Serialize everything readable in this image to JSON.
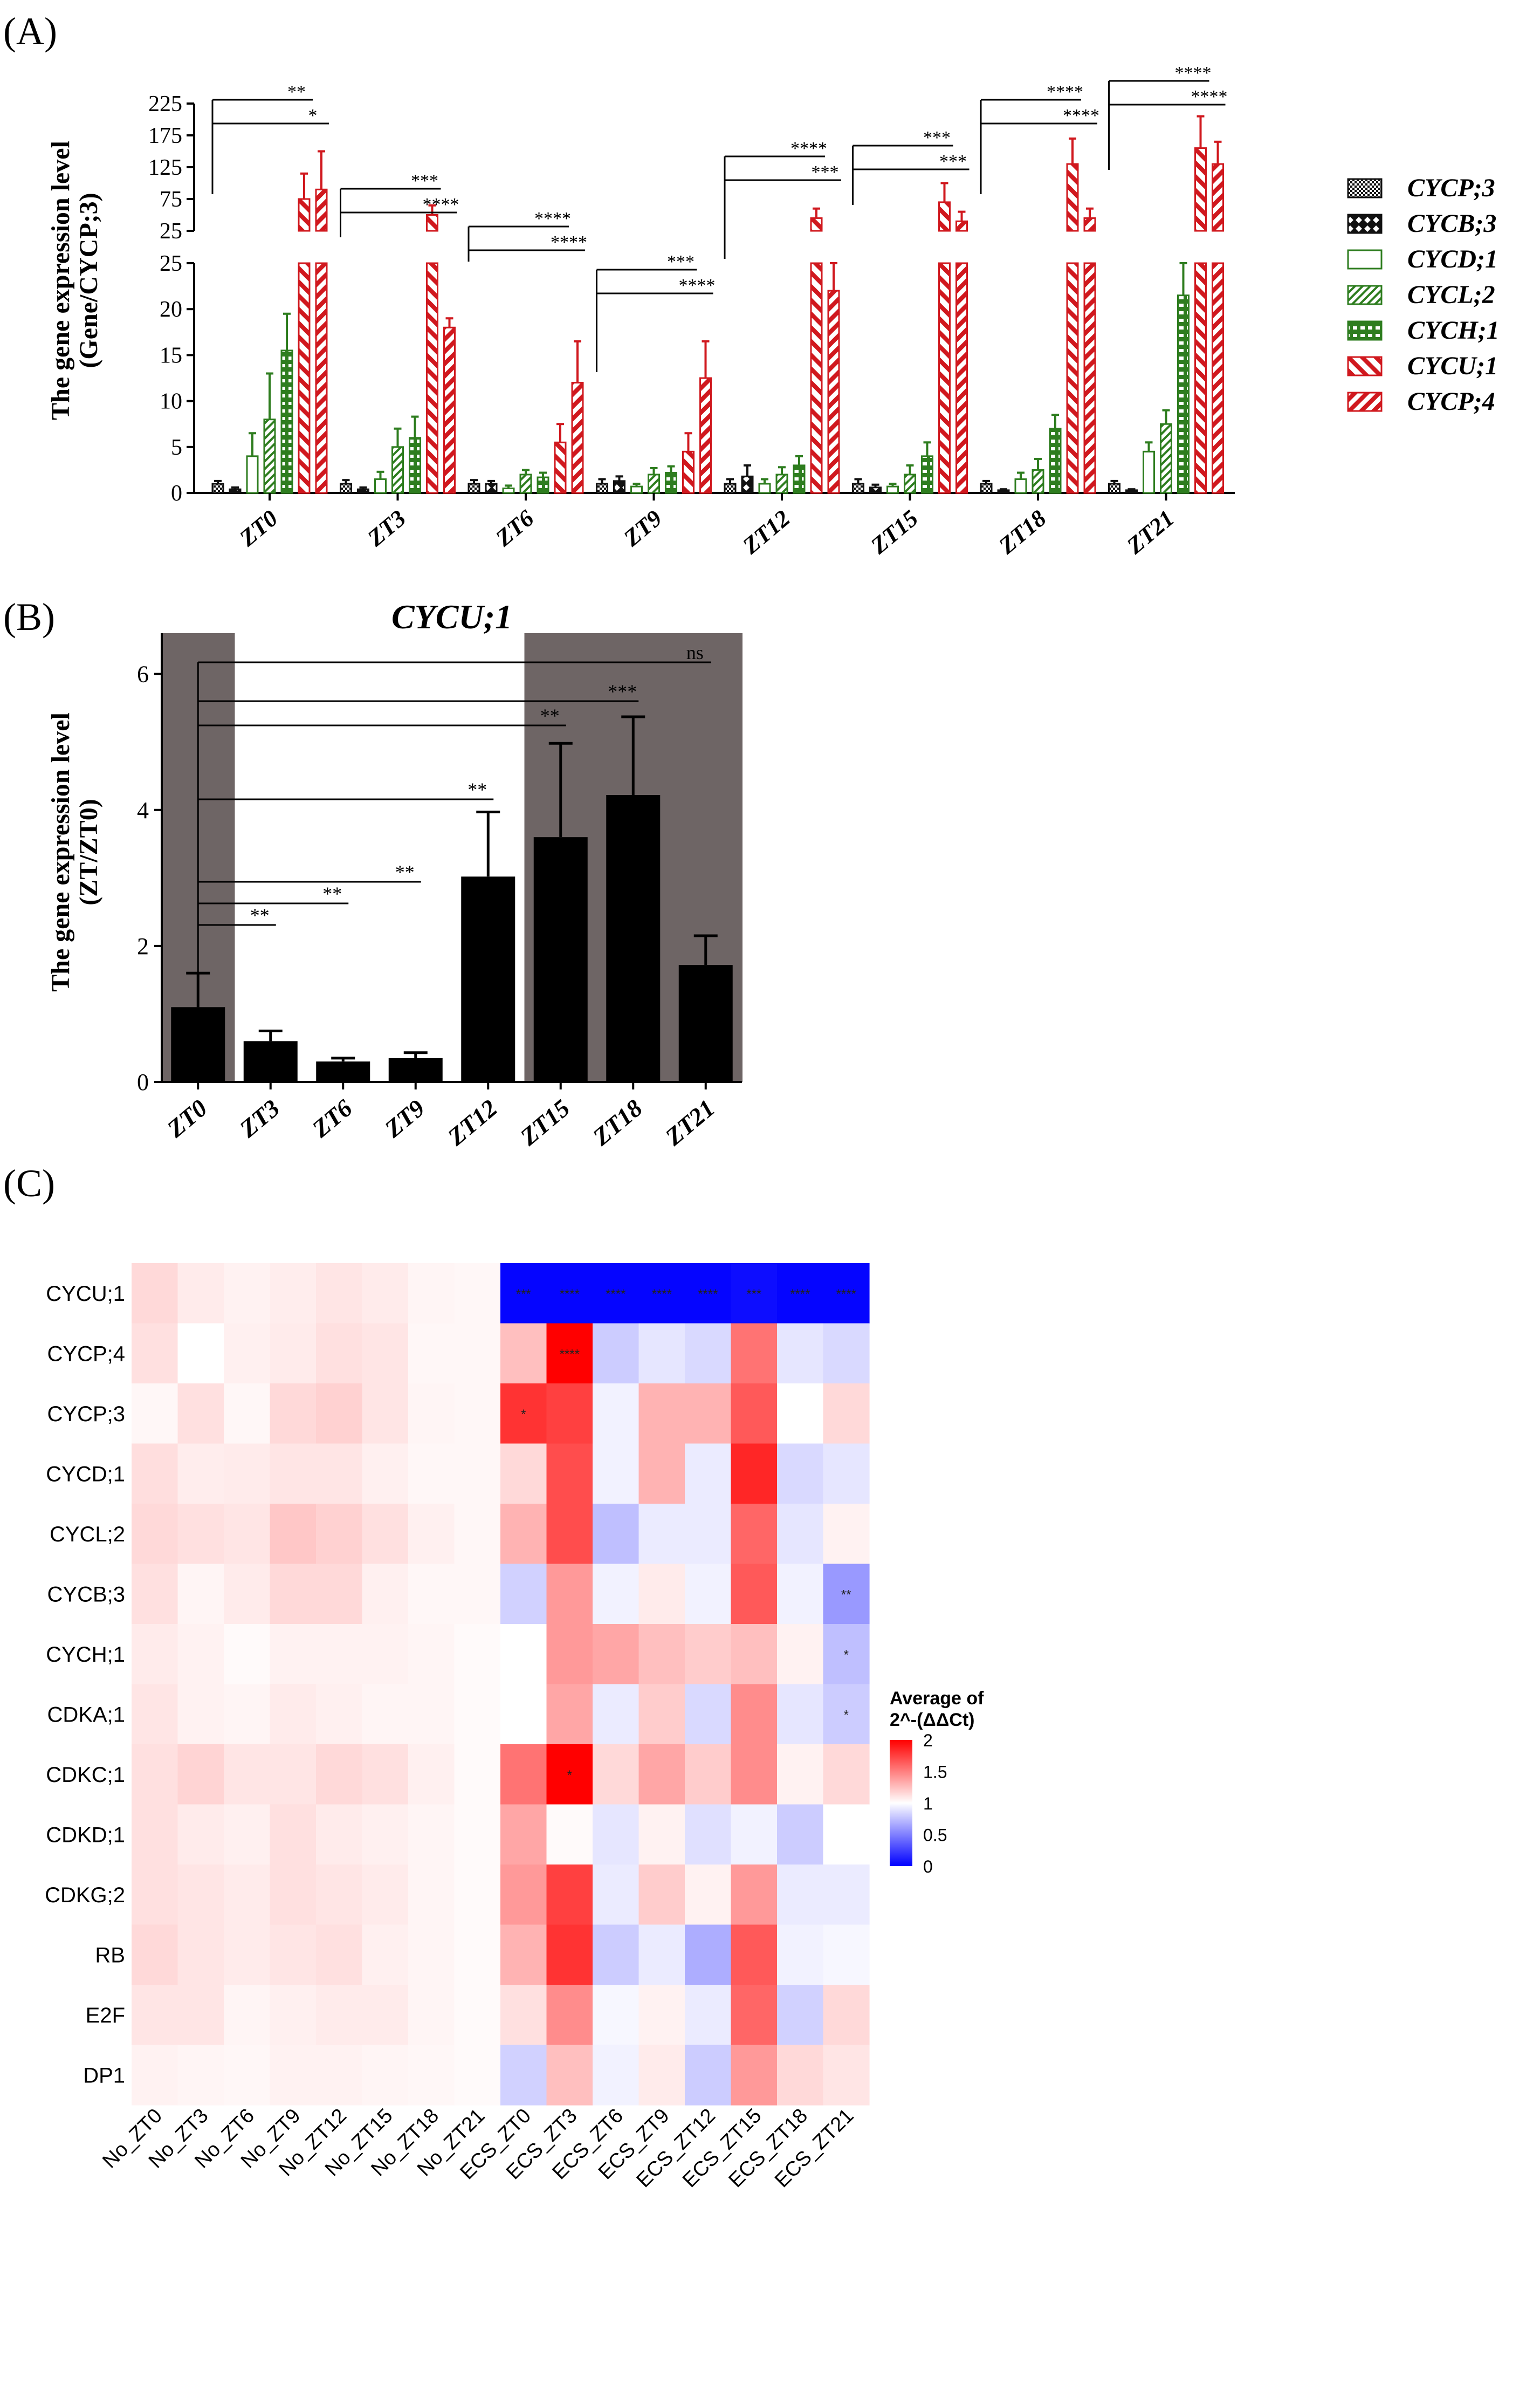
{
  "colors": {
    "black": "#111111",
    "green": "#2e7d1f",
    "red": "#d0181e",
    "shade": "#6e6565"
  },
  "chart_data": [
    {
      "panel": "(A)",
      "type": "bar",
      "title": "",
      "ylabel_line1": "The gene expression level",
      "ylabel_line2": "(Gene/CYCP;3)",
      "xlabel": "",
      "categories": [
        "ZT0",
        "ZT3",
        "ZT6",
        "ZT9",
        "ZT12",
        "ZT15",
        "ZT18",
        "ZT21"
      ],
      "yaxis_lower": {
        "ylim": [
          0,
          25
        ],
        "ticks": [
          "0",
          "5",
          "10",
          "15",
          "20",
          "25"
        ]
      },
      "yaxis_upper": {
        "ylim": [
          25,
          225
        ],
        "ticks": [
          "25",
          "75",
          "125",
          "175",
          "225"
        ]
      },
      "series": [
        {
          "name": "CYCP;3",
          "color": "black",
          "pattern": "check",
          "values": [
            1,
            1,
            1,
            1,
            1,
            1,
            1,
            1
          ],
          "errors": [
            0.3,
            0.4,
            0.4,
            0.5,
            0.5,
            0.5,
            0.3,
            0.3
          ]
        },
        {
          "name": "CYCB;3",
          "color": "black",
          "pattern": "diamond",
          "values": [
            0.4,
            0.4,
            1,
            1.3,
            1.8,
            0.6,
            0.3,
            0.3
          ],
          "errors": [
            0.2,
            0.2,
            0.3,
            0.5,
            1.2,
            0.3,
            0.1,
            0.1
          ]
        },
        {
          "name": "CYCD;1",
          "color": "green",
          "pattern": "open",
          "values": [
            4,
            1.5,
            0.5,
            0.7,
            1,
            0.7,
            1.5,
            4.5
          ],
          "errors": [
            2.5,
            0.8,
            0.3,
            0.3,
            0.5,
            0.3,
            0.7,
            1
          ]
        },
        {
          "name": "CYCL;2",
          "color": "green",
          "pattern": "diag",
          "values": [
            8,
            5,
            2,
            2,
            2,
            2,
            2.5,
            7.5
          ],
          "errors": [
            5,
            2,
            0.5,
            0.7,
            0.8,
            1,
            1.2,
            1.5
          ]
        },
        {
          "name": "CYCH;1",
          "color": "green",
          "pattern": "blocks",
          "values": [
            15.5,
            6,
            1.7,
            2.2,
            3,
            4,
            7,
            21.5
          ],
          "errors": [
            4,
            2.3,
            0.5,
            0.7,
            1,
            1.5,
            1.5,
            4
          ]
        },
        {
          "name": "CYCU;1",
          "color": "red",
          "pattern": "diagThick",
          "values": [
            75,
            50,
            5.5,
            4.5,
            45,
            70,
            130,
            155
          ],
          "errors": [
            40,
            15,
            2,
            2,
            15,
            30,
            40,
            50
          ]
        },
        {
          "name": "CYCP;4",
          "color": "red",
          "pattern": "diagThin",
          "values": [
            90,
            18,
            12,
            12.5,
            22,
            40,
            45,
            130
          ],
          "errors": [
            60,
            1,
            4.5,
            4,
            3.5,
            15,
            15,
            35
          ]
        }
      ],
      "significance": [
        {
          "group": 0,
          "labels": [
            "**",
            "*"
          ]
        },
        {
          "group": 1,
          "labels": [
            "***",
            "****"
          ]
        },
        {
          "group": 2,
          "labels": [
            "****",
            "****"
          ]
        },
        {
          "group": 3,
          "labels": [
            "***",
            "****"
          ]
        },
        {
          "group": 4,
          "labels": [
            "****",
            "***"
          ]
        },
        {
          "group": 5,
          "labels": [
            "***",
            "***"
          ]
        },
        {
          "group": 6,
          "labels": [
            "****",
            "****"
          ]
        },
        {
          "group": 7,
          "labels": [
            "****",
            "****"
          ]
        }
      ]
    },
    {
      "panel": "(B)",
      "type": "bar",
      "title": "CYCU;1",
      "ylabel_line1": "The gene expression level",
      "ylabel_line2": "(ZT/ZT0)",
      "xlabel": "",
      "categories": [
        "ZT0",
        "ZT3",
        "ZT6",
        "ZT9",
        "ZT12",
        "ZT15",
        "ZT18",
        "ZT21"
      ],
      "values": [
        1.1,
        0.6,
        0.3,
        0.35,
        3.02,
        3.6,
        4.22,
        1.72
      ],
      "errors": [
        0.5,
        0.15,
        0.05,
        0.08,
        0.95,
        1.38,
        1.15,
        0.43
      ],
      "ylim": [
        0,
        6.6
      ],
      "yticks": [
        "0",
        "2",
        "4",
        "6"
      ],
      "dark_phase": [
        "ZT0",
        "ZT15",
        "ZT18",
        "ZT21"
      ],
      "significance": [
        {
          "to": "ZT3",
          "label": "**"
        },
        {
          "to": "ZT6",
          "label": "**"
        },
        {
          "to": "ZT9",
          "label": "**"
        },
        {
          "to": "ZT12",
          "label": "**"
        },
        {
          "to": "ZT15",
          "label": "**"
        },
        {
          "to": "ZT18",
          "label": "***"
        },
        {
          "to": "ZT21",
          "label": "ns"
        }
      ]
    },
    {
      "panel": "(C)",
      "type": "heatmap",
      "title": "",
      "rows": [
        "CYCU;1",
        "CYCP;4",
        "CYCP;3",
        "CYCD;1",
        "CYCL;2",
        "CYCB;3",
        "CYCH;1",
        "CDKA;1",
        "CDKC;1",
        "CDKD;1",
        "CDKG;2",
        "RB",
        "E2F",
        "DP1"
      ],
      "columns": [
        "No_ZT0",
        "No_ZT3",
        "No_ZT6",
        "No_ZT9",
        "No_ZT12",
        "No_ZT15",
        "No_ZT18",
        "No_ZT21",
        "ECS_ZT0",
        "ECS_ZT3",
        "ECS_ZT6",
        "ECS_ZT9",
        "ECS_ZT12",
        "ECS_ZT15",
        "ECS_ZT18",
        "ECS_ZT21"
      ],
      "values": [
        [
          1.15,
          1.08,
          1.05,
          1.07,
          1.1,
          1.08,
          1.04,
          1.03,
          0.02,
          0.02,
          0.02,
          0.02,
          0.02,
          0.05,
          0.02,
          0.02
        ],
        [
          1.12,
          1.0,
          1.06,
          1.08,
          1.12,
          1.1,
          1.03,
          1.03,
          1.25,
          2.05,
          0.8,
          0.9,
          0.85,
          1.55,
          0.9,
          0.85
        ],
        [
          1.03,
          1.12,
          1.03,
          1.15,
          1.18,
          1.1,
          1.04,
          1.03,
          1.8,
          1.75,
          0.95,
          1.3,
          1.3,
          1.65,
          1.0,
          1.15
        ],
        [
          1.13,
          1.07,
          1.08,
          1.1,
          1.1,
          1.06,
          1.03,
          1.03,
          1.15,
          1.7,
          0.95,
          1.3,
          0.92,
          1.85,
          0.85,
          0.9
        ],
        [
          1.15,
          1.12,
          1.1,
          1.22,
          1.18,
          1.12,
          1.06,
          1.03,
          1.3,
          1.7,
          0.75,
          0.92,
          0.92,
          1.6,
          0.9,
          1.05
        ],
        [
          1.12,
          1.04,
          1.08,
          1.15,
          1.15,
          1.06,
          1.03,
          1.03,
          0.82,
          1.4,
          0.95,
          1.08,
          0.95,
          1.65,
          0.95,
          0.6
        ],
        [
          1.08,
          1.05,
          1.02,
          1.05,
          1.05,
          1.05,
          1.04,
          1.02,
          1.0,
          1.4,
          1.35,
          1.25,
          1.2,
          1.25,
          1.05,
          0.75
        ],
        [
          1.1,
          1.05,
          1.04,
          1.08,
          1.06,
          1.04,
          1.04,
          1.02,
          1.0,
          1.35,
          0.92,
          1.2,
          0.85,
          1.45,
          0.9,
          0.8
        ],
        [
          1.12,
          1.17,
          1.1,
          1.1,
          1.15,
          1.12,
          1.06,
          1.02,
          1.55,
          2.08,
          1.15,
          1.35,
          1.2,
          1.45,
          1.05,
          1.15
        ],
        [
          1.12,
          1.08,
          1.06,
          1.12,
          1.08,
          1.06,
          1.04,
          1.02,
          1.35,
          1.02,
          0.9,
          1.05,
          0.88,
          0.95,
          0.8,
          1.0
        ],
        [
          1.12,
          1.1,
          1.08,
          1.12,
          1.1,
          1.08,
          1.04,
          1.02,
          1.4,
          1.75,
          0.92,
          1.2,
          1.05,
          1.4,
          0.92,
          0.92
        ],
        [
          1.15,
          1.1,
          1.08,
          1.1,
          1.12,
          1.06,
          1.04,
          1.02,
          1.3,
          1.8,
          0.8,
          0.92,
          0.68,
          1.65,
          0.95,
          0.97
        ],
        [
          1.1,
          1.1,
          1.04,
          1.06,
          1.08,
          1.08,
          1.04,
          1.02,
          1.12,
          1.45,
          0.97,
          1.05,
          0.92,
          1.6,
          0.82,
          1.15
        ],
        [
          1.05,
          1.04,
          1.03,
          1.05,
          1.05,
          1.04,
          1.03,
          1.02,
          0.82,
          1.25,
          0.95,
          1.08,
          0.8,
          1.4,
          1.15,
          1.1
        ]
      ],
      "annotations": [
        {
          "row": 0,
          "col": 8,
          "label": "***"
        },
        {
          "row": 0,
          "col": 9,
          "label": "****"
        },
        {
          "row": 0,
          "col": 10,
          "label": "****"
        },
        {
          "row": 0,
          "col": 11,
          "label": "****"
        },
        {
          "row": 0,
          "col": 12,
          "label": "****"
        },
        {
          "row": 0,
          "col": 13,
          "label": "***"
        },
        {
          "row": 0,
          "col": 14,
          "label": "****"
        },
        {
          "row": 0,
          "col": 15,
          "label": "****"
        },
        {
          "row": 1,
          "col": 9,
          "label": "****"
        },
        {
          "row": 2,
          "col": 8,
          "label": "*"
        },
        {
          "row": 5,
          "col": 15,
          "label": "**"
        },
        {
          "row": 6,
          "col": 15,
          "label": "*"
        },
        {
          "row": 7,
          "col": 15,
          "label": "*"
        },
        {
          "row": 8,
          "col": 9,
          "label": "*"
        }
      ],
      "legend_title_line1": "Average of",
      "legend_title_line2": "2^-(ΔΔCt)",
      "legend_ticks": [
        "2",
        "1.5",
        "1",
        "0.5",
        "0"
      ],
      "color_range": [
        0,
        2
      ]
    }
  ]
}
